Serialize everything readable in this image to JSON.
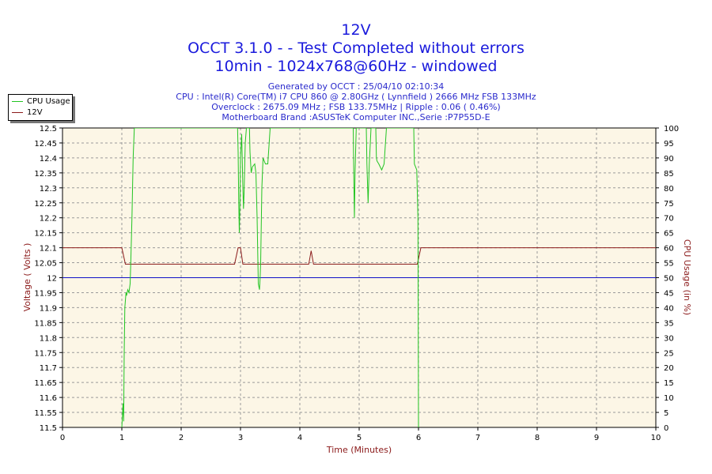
{
  "header": {
    "title": "12V",
    "subtitle": "OCCT 3.1.0 -  - Test Completed without errors",
    "subtitle2": "10min - 1024x768@60Hz - windowed",
    "info_lines": [
      "Generated by OCCT : 25/04/10 02:10:34",
      "CPU : Intel(R) Core(TM) i7 CPU 860 @ 2.80GHz ( Lynnfield ) 2666 MHz FSB 133MHz",
      "Overclock : 2675.09 MHz ; FSB 133.75MHz | Ripple : 0.06 ( 0.46%)",
      "Motherboard Brand :ASUSTeK Computer INC.,Serie :P7P55D-E"
    ]
  },
  "legend": {
    "items": [
      {
        "label": "CPU Usage",
        "color": "#22c422"
      },
      {
        "label": "12V",
        "color": "#8b1a1a"
      }
    ]
  },
  "chart_data": {
    "type": "line",
    "xlabel": "Time (Minutes)",
    "ylabel_left": "Voltage ( Volts )",
    "ylabel_right": "CPU Usage (in %)",
    "xlim": [
      0,
      10
    ],
    "ylim_left": [
      11.5,
      12.5
    ],
    "ylim_right": [
      0,
      100
    ],
    "x_ticks": [
      "0",
      "1",
      "2",
      "3",
      "4",
      "5",
      "6",
      "7",
      "8",
      "9",
      "10"
    ],
    "y_ticks_left": [
      "11.5",
      "11.55",
      "11.6",
      "11.65",
      "11.7",
      "11.75",
      "11.8",
      "11.85",
      "11.9",
      "11.95",
      "12",
      "12.05",
      "12.1",
      "12.15",
      "12.2",
      "12.25",
      "12.3",
      "12.35",
      "12.4",
      "12.45",
      "12.5"
    ],
    "y_ticks_right": [
      "0",
      "5",
      "10",
      "15",
      "20",
      "25",
      "30",
      "35",
      "40",
      "45",
      "50",
      "55",
      "60",
      "65",
      "70",
      "75",
      "80",
      "85",
      "90",
      "95",
      "100"
    ],
    "grid": true,
    "legend_position": "top-left",
    "colors": {
      "plot_bg": "#fcf6e6",
      "grid": "#9a9a9a",
      "axis_label": "#8b1a1a",
      "reference_line": "#1010c8"
    },
    "reference_line": {
      "axis": "left",
      "value": 12.0
    },
    "series": [
      {
        "name": "12V",
        "axis": "left",
        "color": "#8b1a1a",
        "points": [
          [
            0,
            12.1
          ],
          [
            1.0,
            12.1
          ],
          [
            1.06,
            12.045
          ],
          [
            2.9,
            12.045
          ],
          [
            2.96,
            12.1
          ],
          [
            3.0,
            12.1
          ],
          [
            3.04,
            12.045
          ],
          [
            4.15,
            12.045
          ],
          [
            4.19,
            12.09
          ],
          [
            4.23,
            12.045
          ],
          [
            5.98,
            12.045
          ],
          [
            6.04,
            12.1
          ],
          [
            10,
            12.1
          ]
        ]
      },
      {
        "name": "CPU Usage",
        "axis": "right",
        "color": "#22c422",
        "points": [
          [
            1.0,
            0
          ],
          [
            1.02,
            8
          ],
          [
            1.03,
            2
          ],
          [
            1.04,
            25
          ],
          [
            1.05,
            40
          ],
          [
            1.07,
            45
          ],
          [
            1.08,
            44
          ],
          [
            1.1,
            46
          ],
          [
            1.12,
            45
          ],
          [
            1.14,
            48
          ],
          [
            1.15,
            55
          ],
          [
            1.17,
            70
          ],
          [
            1.19,
            90
          ],
          [
            1.21,
            100
          ],
          [
            2.95,
            100
          ],
          [
            2.96,
            92
          ],
          [
            2.97,
            75
          ],
          [
            2.98,
            65
          ],
          [
            2.99,
            75
          ],
          [
            3.0,
            90
          ],
          [
            3.02,
            98
          ],
          [
            3.04,
            80
          ],
          [
            3.05,
            73
          ],
          [
            3.06,
            78
          ],
          [
            3.08,
            95
          ],
          [
            3.1,
            100
          ],
          [
            3.15,
            100
          ],
          [
            3.16,
            92
          ],
          [
            3.18,
            85
          ],
          [
            3.2,
            87
          ],
          [
            3.24,
            88
          ],
          [
            3.26,
            85
          ],
          [
            3.28,
            70
          ],
          [
            3.3,
            48
          ],
          [
            3.32,
            46
          ],
          [
            3.33,
            50
          ],
          [
            3.34,
            55
          ],
          [
            3.36,
            80
          ],
          [
            3.38,
            90
          ],
          [
            3.42,
            88
          ],
          [
            3.46,
            88
          ],
          [
            3.5,
            100
          ],
          [
            4.9,
            100
          ],
          [
            4.91,
            82
          ],
          [
            4.92,
            70
          ],
          [
            4.93,
            85
          ],
          [
            4.95,
            100
          ],
          [
            5.12,
            100
          ],
          [
            5.13,
            88
          ],
          [
            5.15,
            75
          ],
          [
            5.17,
            88
          ],
          [
            5.2,
            100
          ],
          [
            5.28,
            100
          ],
          [
            5.29,
            90
          ],
          [
            5.3,
            89
          ],
          [
            5.33,
            88
          ],
          [
            5.38,
            86
          ],
          [
            5.42,
            88
          ],
          [
            5.46,
            100
          ],
          [
            5.92,
            100
          ],
          [
            5.93,
            88
          ],
          [
            5.95,
            87
          ],
          [
            5.97,
            86
          ],
          [
            5.99,
            70
          ],
          [
            6.0,
            0
          ]
        ]
      }
    ]
  }
}
